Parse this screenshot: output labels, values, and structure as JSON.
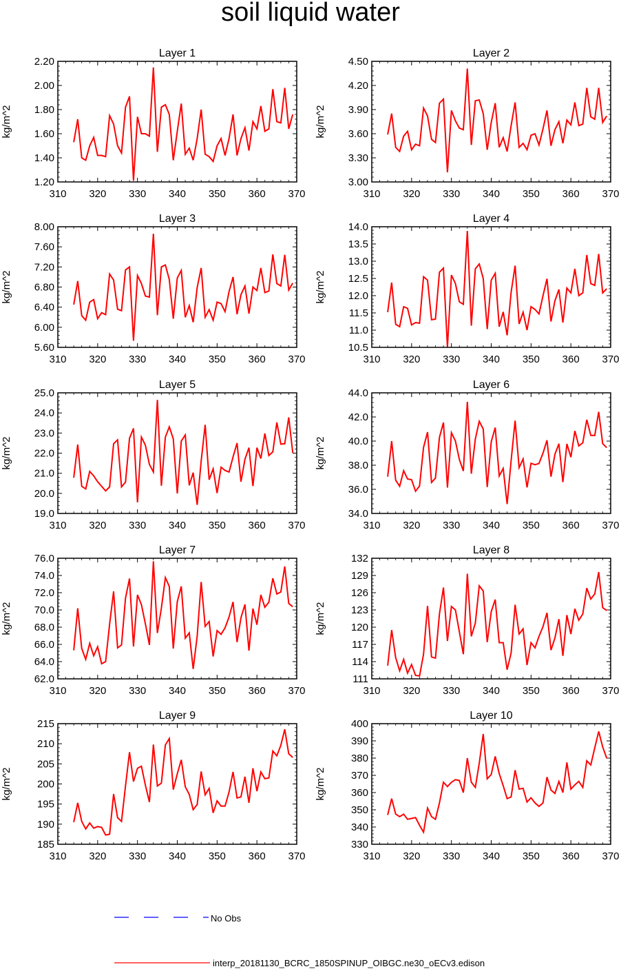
{
  "title": "soil liquid water",
  "colors": {
    "model": "#ff0000",
    "obs": "#0000ff",
    "axis": "#000000"
  },
  "x_ticks": [
    310,
    320,
    330,
    340,
    350,
    360,
    370
  ],
  "legend": {
    "obs_label": "No Obs",
    "model_label": "interp_20181130_BCRC_1850SPINUP_OIBGC.ne30_oECv3.edison"
  },
  "chart_data": [
    {
      "type": "line",
      "title": "Layer 1",
      "ylabel": "kg/m^2",
      "xlim": [
        310,
        370
      ],
      "ylim": [
        1.2,
        2.2
      ],
      "ytick_labels": [
        "1.20",
        "1.40",
        "1.60",
        "1.80",
        "2.00",
        "2.20"
      ],
      "x_start": 314,
      "values": [
        1.53,
        1.72,
        1.4,
        1.38,
        1.5,
        1.57,
        1.42,
        1.42,
        1.41,
        1.75,
        1.68,
        1.5,
        1.44,
        1.82,
        1.91,
        1.21,
        1.74,
        1.6,
        1.6,
        1.58,
        2.15,
        1.45,
        1.82,
        1.84,
        1.76,
        1.38,
        1.62,
        1.85,
        1.43,
        1.48,
        1.38,
        1.56,
        1.8,
        1.43,
        1.41,
        1.37,
        1.5,
        1.56,
        1.42,
        1.56,
        1.76,
        1.42,
        1.56,
        1.65,
        1.46,
        1.7,
        1.64,
        1.83,
        1.62,
        1.64,
        1.97,
        1.7,
        1.69,
        1.98,
        1.64,
        1.76
      ]
    },
    {
      "type": "line",
      "title": "Layer 2",
      "ylabel": "kg/m^2",
      "xlim": [
        310,
        370
      ],
      "ylim": [
        3.0,
        4.5
      ],
      "ytick_labels": [
        "3.00",
        "3.30",
        "3.60",
        "3.90",
        "4.20",
        "4.50"
      ],
      "x_start": 314,
      "values": [
        3.59,
        3.85,
        3.43,
        3.38,
        3.57,
        3.63,
        3.4,
        3.47,
        3.45,
        3.92,
        3.82,
        3.53,
        3.49,
        3.98,
        4.03,
        3.12,
        3.89,
        3.76,
        3.67,
        3.65,
        4.41,
        3.46,
        4.01,
        4.02,
        3.85,
        3.4,
        3.74,
        3.98,
        3.43,
        3.55,
        3.38,
        3.7,
        3.99,
        3.43,
        3.48,
        3.4,
        3.58,
        3.6,
        3.46,
        3.66,
        3.89,
        3.45,
        3.65,
        3.75,
        3.48,
        3.77,
        3.71,
        3.99,
        3.7,
        3.72,
        4.17,
        3.81,
        3.78,
        4.17,
        3.74,
        3.82
      ]
    },
    {
      "type": "line",
      "title": "Layer 3",
      "ylabel": "kg/m^2",
      "xlim": [
        310,
        370
      ],
      "ylim": [
        5.6,
        8.0
      ],
      "ytick_labels": [
        "5.60",
        "6.00",
        "6.40",
        "6.80",
        "7.20",
        "7.60",
        "8.00"
      ],
      "x_start": 314,
      "values": [
        6.45,
        6.92,
        6.23,
        6.14,
        6.5,
        6.55,
        6.17,
        6.29,
        6.25,
        7.06,
        6.94,
        6.36,
        6.33,
        7.14,
        7.2,
        5.73,
        7.03,
        6.87,
        6.62,
        6.6,
        7.86,
        6.24,
        7.2,
        7.24,
        6.95,
        6.17,
        6.98,
        7.13,
        6.2,
        6.43,
        6.1,
        6.79,
        7.18,
        6.2,
        6.35,
        6.14,
        6.5,
        6.47,
        6.31,
        6.71,
        7.0,
        6.26,
        6.65,
        6.82,
        6.27,
        6.8,
        6.73,
        7.18,
        6.69,
        6.72,
        7.45,
        6.87,
        6.82,
        7.44,
        6.74,
        6.88
      ]
    },
    {
      "type": "line",
      "title": "Layer 4",
      "ylabel": "kg/m^2",
      "xlim": [
        310,
        370
      ],
      "ylim": [
        10.5,
        14.0
      ],
      "ytick_labels": [
        "10.5",
        "11.0",
        "11.5",
        "12.0",
        "12.5",
        "13.0",
        "13.5",
        "14.0"
      ],
      "x_start": 314,
      "values": [
        11.52,
        12.38,
        11.17,
        11.1,
        11.68,
        11.63,
        11.15,
        11.22,
        11.2,
        12.55,
        12.45,
        11.3,
        11.32,
        12.68,
        12.8,
        10.5,
        12.6,
        12.35,
        11.82,
        11.75,
        13.88,
        11.13,
        12.78,
        12.92,
        12.5,
        11.03,
        12.45,
        12.65,
        11.1,
        11.53,
        10.85,
        12.1,
        12.87,
        11.18,
        11.52,
        11.0,
        11.68,
        11.6,
        11.47,
        12.0,
        12.49,
        11.25,
        11.85,
        12.18,
        11.22,
        12.22,
        12.08,
        12.78,
        12.0,
        12.08,
        13.18,
        12.35,
        12.3,
        13.21,
        12.08,
        12.2
      ]
    },
    {
      "type": "line",
      "title": "Layer 5",
      "ylabel": "kg/m^2",
      "xlim": [
        310,
        370
      ],
      "ylim": [
        19.0,
        25.0
      ],
      "ytick_labels": [
        "19.0",
        "20.0",
        "21.0",
        "22.0",
        "23.0",
        "24.0",
        "25.0"
      ],
      "x_start": 314,
      "values": [
        20.78,
        22.43,
        20.35,
        20.22,
        21.09,
        20.87,
        20.58,
        20.35,
        20.12,
        20.32,
        22.47,
        22.66,
        20.32,
        20.56,
        22.74,
        23.23,
        19.55,
        22.8,
        22.39,
        21.44,
        21.06,
        24.65,
        20.38,
        22.8,
        23.31,
        22.71,
        19.99,
        22.6,
        22.91,
        20.4,
        21.03,
        19.43,
        21.61,
        23.41,
        20.68,
        21.22,
        20.01,
        21.3,
        21.14,
        21.06,
        21.81,
        22.5,
        20.58,
        21.7,
        22.27,
        20.36,
        22.27,
        21.73,
        22.98,
        21.88,
        22.07,
        23.53,
        22.45,
        22.47,
        23.78,
        22.02
      ]
    },
    {
      "type": "line",
      "title": "Layer 6",
      "ylabel": "kg/m^2",
      "xlim": [
        310,
        370
      ],
      "ylim": [
        34.0,
        44.0
      ],
      "ytick_labels": [
        "34.0",
        "36.0",
        "38.0",
        "40.0",
        "42.0",
        "44.0"
      ],
      "x_start": 314,
      "values": [
        37.05,
        40.0,
        36.76,
        36.25,
        37.55,
        36.86,
        36.8,
        35.84,
        36.28,
        39.48,
        40.74,
        36.57,
        36.93,
        40.31,
        41.54,
        36.14,
        40.7,
        40.0,
        38.48,
        37.52,
        43.26,
        37.3,
        40.17,
        41.64,
        41.0,
        36.19,
        39.94,
        41.12,
        37.11,
        37.73,
        34.78,
        38.38,
        41.7,
        37.8,
        38.52,
        36.16,
        38.16,
        38.04,
        38.15,
        39.0,
        40.07,
        37.05,
        38.9,
        39.78,
        36.6,
        39.77,
        38.67,
        40.84,
        39.6,
        39.86,
        41.77,
        40.48,
        40.47,
        42.42,
        39.79,
        39.45
      ]
    },
    {
      "type": "line",
      "title": "Layer 7",
      "ylabel": "kg/m^2",
      "xlim": [
        310,
        370
      ],
      "ylim": [
        62.0,
        76.0
      ],
      "ytick_labels": [
        "62.0",
        "64.0",
        "66.0",
        "68.0",
        "70.0",
        "72.0",
        "74.0",
        "76.0"
      ],
      "x_start": 314,
      "values": [
        65.31,
        70.19,
        65.53,
        64.26,
        66.12,
        64.69,
        65.73,
        63.75,
        64.0,
        68.35,
        72.15,
        65.6,
        65.94,
        71.37,
        73.65,
        65.76,
        71.75,
        70.62,
        68.38,
        65.94,
        75.65,
        67.32,
        70.21,
        73.75,
        72.72,
        65.52,
        70.95,
        72.74,
        66.72,
        67.34,
        63.15,
        66.96,
        73.25,
        68.09,
        68.66,
        64.6,
        67.6,
        67.17,
        67.93,
        69.18,
        70.93,
        66.26,
        69.1,
        70.64,
        65.27,
        70.16,
        68.28,
        71.75,
        70.31,
        70.9,
        73.67,
        71.85,
        72.08,
        75.05,
        70.75,
        70.37
      ]
    },
    {
      "type": "line",
      "title": "Layer 8",
      "ylabel": "kg/m^2",
      "xlim": [
        310,
        370
      ],
      "ylim": [
        111,
        132
      ],
      "ytick_labels": [
        "111",
        "114",
        "117",
        "120",
        "123",
        "126",
        "129",
        "132"
      ],
      "x_start": 314,
      "values": [
        113.3,
        119.5,
        114.7,
        112.4,
        114.4,
        112.0,
        113.5,
        111.6,
        111.5,
        115.3,
        123.7,
        114.8,
        114.6,
        122.3,
        126.9,
        117.6,
        123.6,
        123.0,
        119.2,
        115.3,
        129.3,
        118.4,
        120.7,
        127.2,
        126.3,
        117.4,
        122.7,
        124.8,
        117.3,
        117.3,
        112.6,
        115.5,
        123.9,
        118.8,
        119.7,
        113.4,
        117.3,
        116.4,
        118.4,
        120.1,
        122.5,
        116.0,
        118.1,
        121.4,
        115.0,
        122.1,
        118.8,
        123.2,
        121.2,
        122.3,
        126.8,
        124.9,
        125.8,
        129.6,
        123.4,
        122.9
      ]
    },
    {
      "type": "line",
      "title": "Layer 9",
      "ylabel": "kg/m^2",
      "xlim": [
        310,
        370
      ],
      "ylim": [
        185,
        215
      ],
      "ytick_labels": [
        "185",
        "190",
        "195",
        "200",
        "205",
        "210",
        "215"
      ],
      "x_start": 314,
      "values": [
        190.5,
        195.3,
        190.7,
        188.8,
        190.3,
        189.0,
        189.4,
        189.2,
        187.3,
        187.5,
        197.5,
        191.6,
        190.7,
        199.5,
        207.9,
        200.6,
        203.9,
        204.4,
        199.7,
        195.5,
        209.8,
        199.5,
        200.2,
        209.7,
        211.3,
        198.6,
        202.5,
        206.0,
        199.3,
        197.4,
        193.6,
        194.9,
        203.1,
        197.3,
        198.9,
        192.8,
        195.8,
        194.5,
        194.5,
        198.0,
        203.0,
        196.5,
        196.8,
        201.8,
        195.3,
        203.9,
        198.2,
        203.0,
        201.3,
        201.5,
        208.2,
        207.0,
        209.6,
        213.6,
        207.5,
        206.6
      ]
    },
    {
      "type": "line",
      "title": "Layer 10",
      "ylabel": "kg/m^2",
      "xlim": [
        310,
        370
      ],
      "ylim": [
        330,
        400
      ],
      "ytick_labels": [
        "330",
        "340",
        "350",
        "360",
        "370",
        "380",
        "390",
        "400"
      ],
      "x_start": 314,
      "values": [
        347.0,
        356.5,
        347.5,
        346.0,
        347.5,
        344.5,
        345.0,
        345.5,
        341.0,
        337.0,
        351.0,
        346.0,
        344.5,
        354.0,
        366.0,
        363.5,
        366.0,
        367.5,
        367.0,
        360.0,
        380.0,
        366.0,
        363.0,
        377.0,
        394.0,
        368.0,
        370.5,
        381.0,
        371.0,
        364.0,
        356.5,
        357.5,
        373.0,
        362.0,
        362.5,
        354.5,
        357.0,
        354.0,
        352.0,
        354.0,
        369.0,
        361.5,
        359.5,
        366.5,
        360.0,
        377.5,
        362.0,
        364.5,
        366.5,
        363.0,
        378.5,
        376.0,
        386.0,
        395.5,
        386.5,
        380.0
      ]
    }
  ]
}
